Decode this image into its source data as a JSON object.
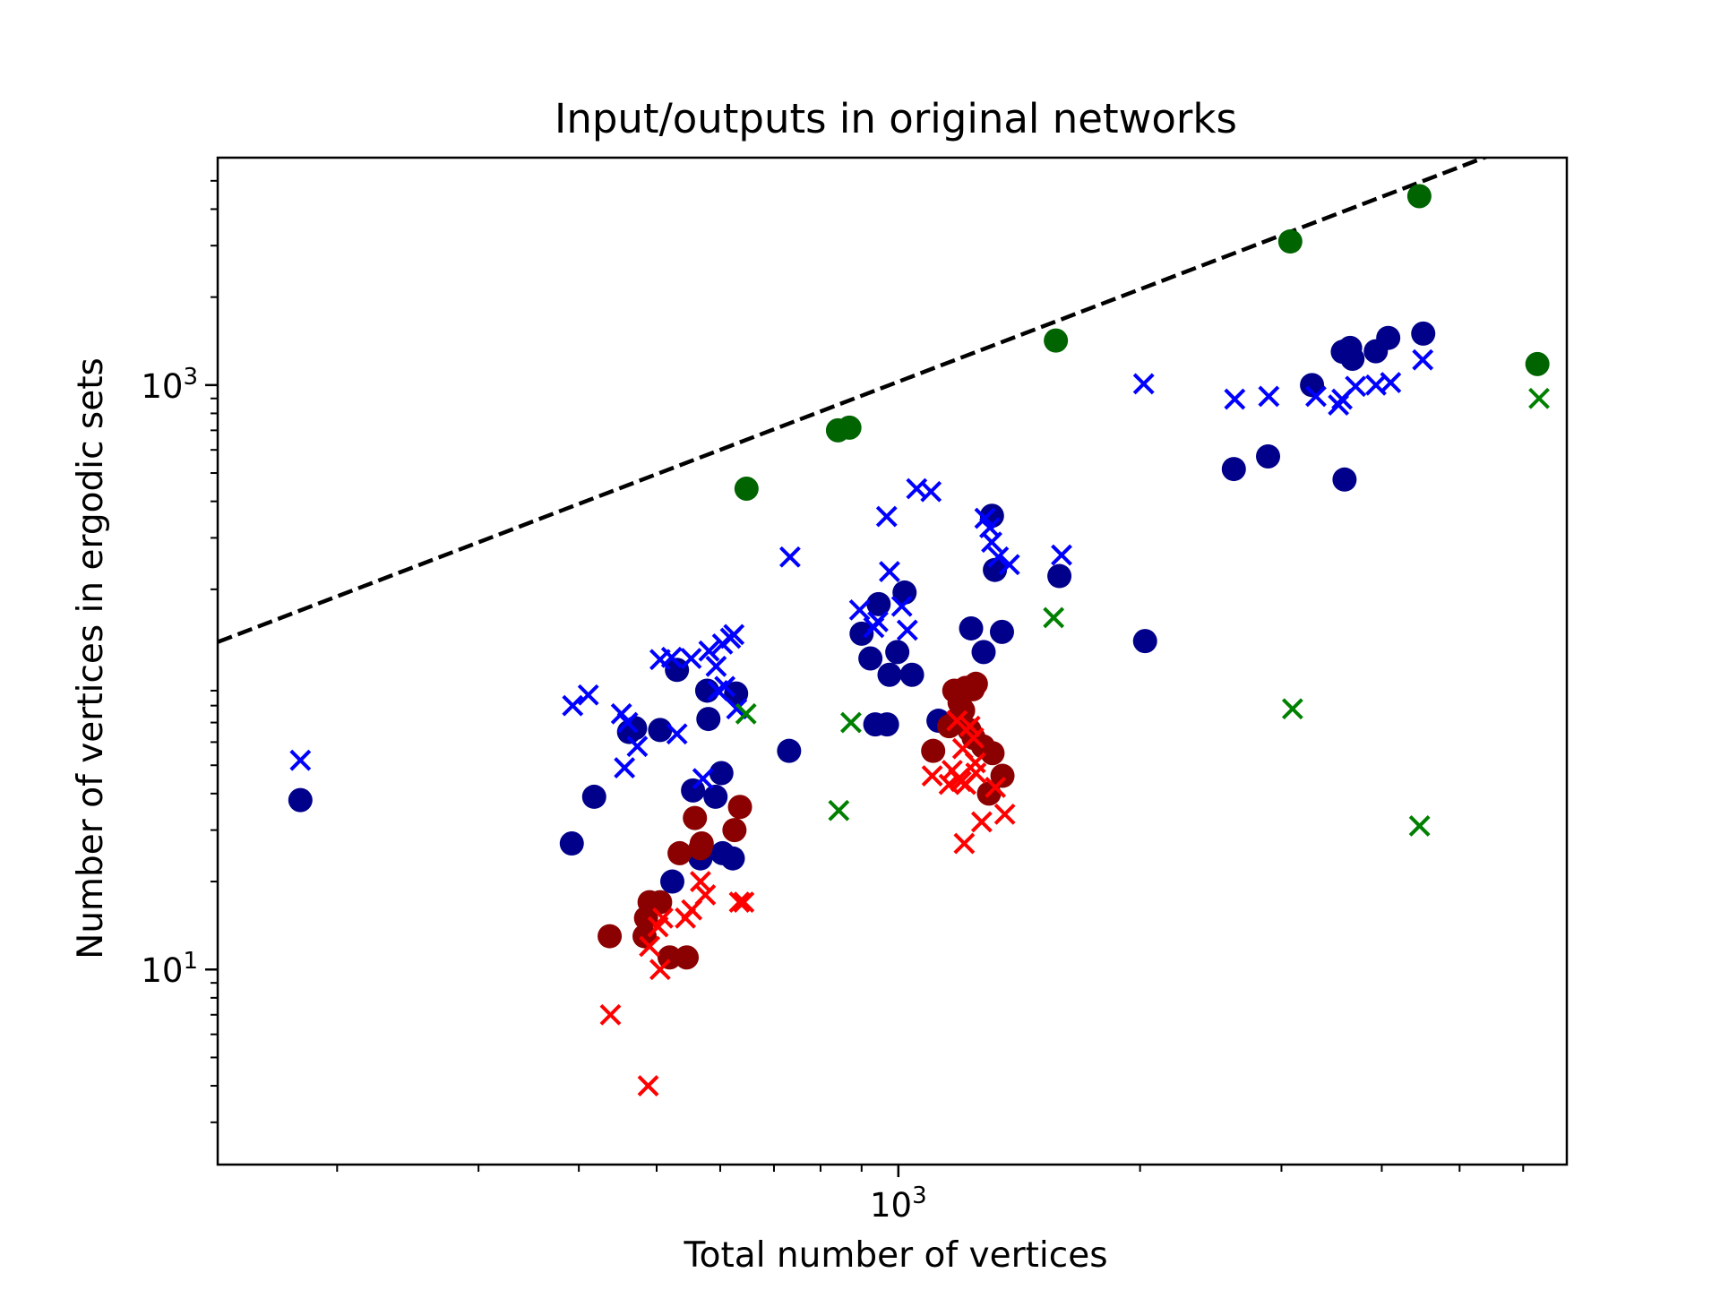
{
  "chart_data": {
    "type": "scatter",
    "title": "Input/outputs in original networks",
    "xlabel": "Total number of vertices",
    "ylabel": "Number of vertices in ergodic sets",
    "xscale": "log",
    "yscale": "log",
    "xlim": [
      142,
      6800
    ],
    "ylim": [
      2.15,
      6000
    ],
    "x_ticks": [
      {
        "value": 1000,
        "base": "10",
        "exp": "3"
      }
    ],
    "y_ticks": [
      {
        "value": 10,
        "base": "10",
        "exp": "1"
      },
      {
        "value": 1000,
        "base": "10",
        "exp": "3"
      }
    ],
    "grid": false,
    "legend": "none",
    "reference_line": {
      "style": "dashed",
      "color": "#000000",
      "x": [
        142,
        6800
      ],
      "y": [
        132,
        7700
      ]
    },
    "series": [
      {
        "marker": "circle",
        "color": "#00008b",
        "points": [
          [
            180,
            38
          ],
          [
            392,
            27
          ],
          [
            418,
            39
          ],
          [
            462,
            65
          ],
          [
            470,
            67
          ],
          [
            505,
            66
          ],
          [
            523,
            20
          ],
          [
            530,
            106
          ],
          [
            555,
            41
          ],
          [
            567,
            24
          ],
          [
            578,
            90
          ],
          [
            580,
            72
          ],
          [
            592,
            39
          ],
          [
            602,
            47
          ],
          [
            604,
            25
          ],
          [
            622,
            24
          ],
          [
            628,
            88
          ],
          [
            731,
            56
          ],
          [
            900,
            141
          ],
          [
            923,
            116
          ],
          [
            936,
            69
          ],
          [
            945,
            178
          ],
          [
            968,
            69
          ],
          [
            975,
            102
          ],
          [
            997,
            122
          ],
          [
            1018,
            195
          ],
          [
            1040,
            102
          ],
          [
            1122,
            71
          ],
          [
            1232,
            147
          ],
          [
            1277,
            122
          ],
          [
            1308,
            357
          ],
          [
            1319,
            233
          ],
          [
            1346,
            143
          ],
          [
            1587,
            222
          ],
          [
            2029,
            133
          ],
          [
            2617,
            516
          ],
          [
            2887,
            570
          ],
          [
            3275,
            1000
          ],
          [
            3577,
            1300
          ],
          [
            3595,
            475
          ],
          [
            3653,
            1340
          ],
          [
            3678,
            1230
          ],
          [
            3932,
            1305
          ],
          [
            4075,
            1450
          ],
          [
            4505,
            1500
          ]
        ]
      },
      {
        "marker": "x",
        "color": "#0000ff",
        "points": [
          [
            180,
            52
          ],
          [
            393,
            80
          ],
          [
            411,
            87
          ],
          [
            452,
            75
          ],
          [
            456,
            49
          ],
          [
            460,
            70
          ],
          [
            473,
            58
          ],
          [
            505,
            115
          ],
          [
            522,
            117
          ],
          [
            530,
            64
          ],
          [
            552,
            116
          ],
          [
            571,
            45
          ],
          [
            581,
            123
          ],
          [
            593,
            109
          ],
          [
            596,
            90
          ],
          [
            604,
            130
          ],
          [
            608,
            93
          ],
          [
            618,
            136
          ],
          [
            624,
            140
          ],
          [
            629,
            78
          ],
          [
            733,
            258
          ],
          [
            895,
            170
          ],
          [
            932,
            148
          ],
          [
            943,
            155
          ],
          [
            967,
            355
          ],
          [
            975,
            230
          ],
          [
            1010,
            175
          ],
          [
            1026,
            145
          ],
          [
            1054,
            442
          ],
          [
            1098,
            432
          ],
          [
            1282,
            350
          ],
          [
            1300,
            325
          ],
          [
            1307,
            290
          ],
          [
            1332,
            258
          ],
          [
            1375,
            243
          ],
          [
            1597,
            262
          ],
          [
            2021,
            1010
          ],
          [
            2624,
            895
          ],
          [
            2893,
            915
          ],
          [
            3312,
            915
          ],
          [
            3533,
            855
          ],
          [
            3569,
            895
          ],
          [
            3710,
            990
          ],
          [
            3934,
            1000
          ],
          [
            4103,
            1020
          ],
          [
            4499,
            1220
          ]
        ]
      },
      {
        "marker": "circle",
        "color": "#8b0000",
        "points": [
          [
            437,
            13
          ],
          [
            483,
            13
          ],
          [
            485,
            15
          ],
          [
            490,
            17
          ],
          [
            505,
            17
          ],
          [
            519,
            11
          ],
          [
            534,
            25
          ],
          [
            545,
            11
          ],
          [
            558,
            33
          ],
          [
            567,
            26
          ],
          [
            569,
            27
          ],
          [
            625,
            30
          ],
          [
            635,
            36
          ],
          [
            1105,
            56
          ],
          [
            1157,
            68
          ],
          [
            1174,
            90
          ],
          [
            1179,
            70
          ],
          [
            1185,
            72
          ],
          [
            1192,
            82
          ],
          [
            1204,
            77
          ],
          [
            1213,
            92
          ],
          [
            1226,
            66
          ],
          [
            1238,
            91
          ],
          [
            1241,
            62
          ],
          [
            1249,
            95
          ],
          [
            1275,
            58
          ],
          [
            1297,
            40
          ],
          [
            1310,
            55
          ],
          [
            1348,
            46
          ]
        ]
      },
      {
        "marker": "x",
        "color": "#ff0000",
        "points": [
          [
            438,
            7
          ],
          [
            488,
            4
          ],
          [
            490,
            12
          ],
          [
            502,
            14
          ],
          [
            505,
            10
          ],
          [
            509,
            15
          ],
          [
            543,
            15
          ],
          [
            553,
            16
          ],
          [
            567,
            20
          ],
          [
            575,
            18
          ],
          [
            634,
            17
          ],
          [
            642,
            17
          ],
          [
            1102,
            46
          ],
          [
            1157,
            43
          ],
          [
            1167,
            48
          ],
          [
            1183,
            71
          ],
          [
            1189,
            45
          ],
          [
            1197,
            44
          ],
          [
            1203,
            57
          ],
          [
            1208,
            27
          ],
          [
            1213,
            43
          ],
          [
            1228,
            68
          ],
          [
            1241,
            62
          ],
          [
            1247,
            51
          ],
          [
            1249,
            47
          ],
          [
            1270,
            32
          ],
          [
            1321,
            42
          ],
          [
            1357,
            34
          ]
        ]
      },
      {
        "marker": "circle",
        "color": "#006400",
        "points": [
          [
            647,
            442
          ],
          [
            841,
            700
          ],
          [
            869,
            715
          ],
          [
            1571,
            1420
          ],
          [
            3077,
            3100
          ],
          [
            4455,
            4430
          ],
          [
            6250,
            1180
          ]
        ]
      },
      {
        "marker": "x",
        "color": "#008000",
        "points": [
          [
            646,
            75
          ],
          [
            843,
            35
          ],
          [
            873,
            70
          ],
          [
            1561,
            160
          ],
          [
            3097,
            78
          ],
          [
            4458,
            31
          ],
          [
            6280,
            900
          ]
        ]
      }
    ]
  }
}
